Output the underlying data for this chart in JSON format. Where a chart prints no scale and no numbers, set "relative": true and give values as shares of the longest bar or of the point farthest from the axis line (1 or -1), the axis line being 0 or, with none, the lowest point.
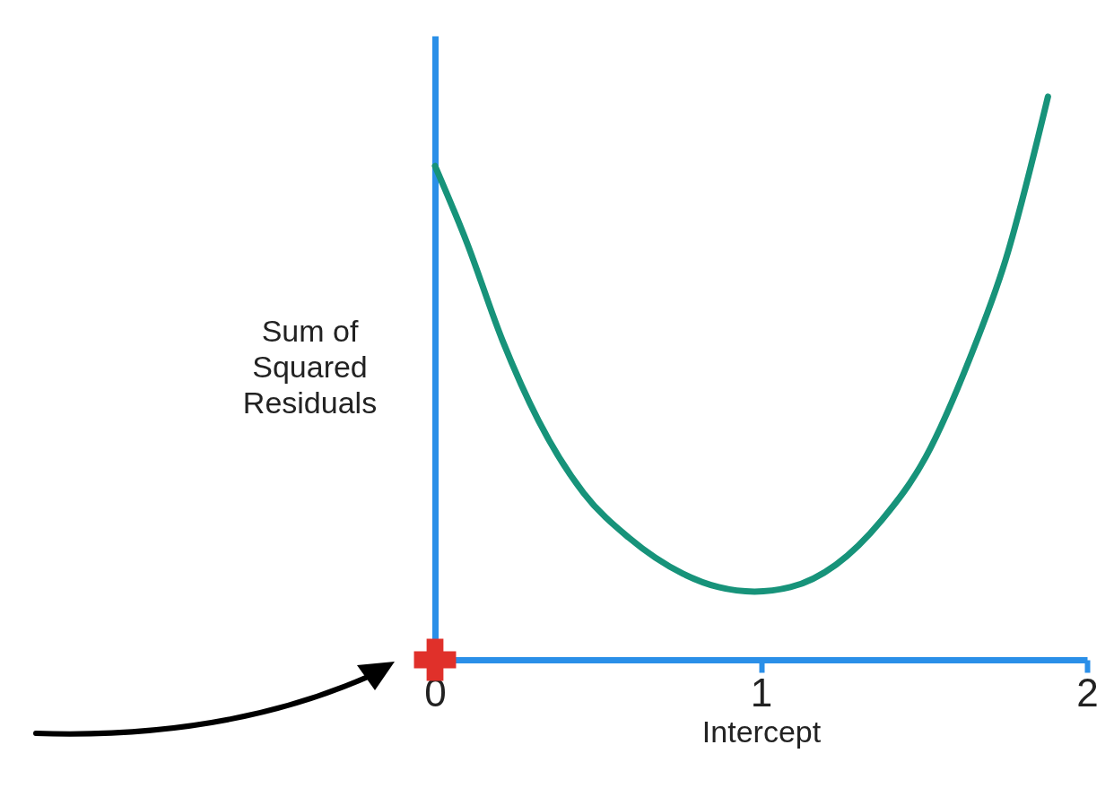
{
  "chart_data": {
    "type": "line",
    "relative": true,
    "xlabel": "Intercept",
    "ylabel": "Sum of Squared Residuals",
    "xlim": [
      0,
      2
    ],
    "xticks": [
      0,
      1,
      2
    ],
    "series": [
      {
        "color": "#17937a",
        "x": [
          0,
          0.097,
          0.207,
          0.318,
          0.456,
          0.594,
          0.76,
          0.87,
          0.98,
          1.09,
          1.23,
          1.37,
          1.505,
          1.64,
          1.75,
          1.88
        ],
        "values": [
          0.877,
          0.742,
          0.567,
          0.424,
          0.296,
          0.217,
          0.153,
          0.129,
          0.121,
          0.129,
          0.169,
          0.248,
          0.36,
          0.535,
          0.71,
          1.0
        ]
      },
      {
        "type": "scatter",
        "marker": "cross",
        "color": "#e0302a",
        "x": [
          0
        ],
        "values": [
          0
        ]
      }
    ]
  }
}
